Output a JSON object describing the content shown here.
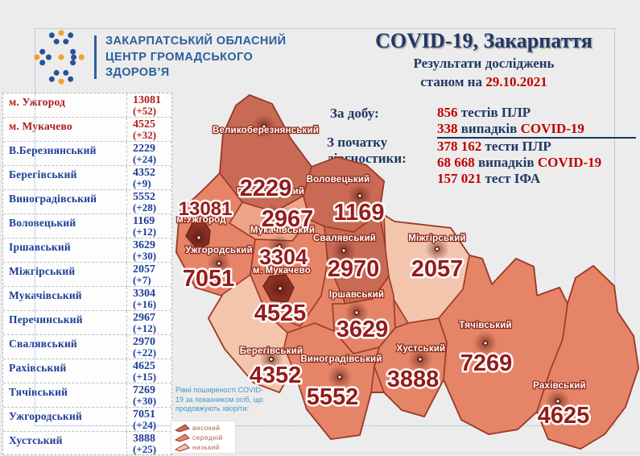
{
  "header": {
    "org_name_lines": [
      "ЗАКАРПАТСЬКИЙ ОБЛАСНИЙ",
      "ЦЕНТР ГРОМАДСЬКОГО",
      "ЗДОРОВ’Я"
    ],
    "logo_colors": {
      "blue": "#2b5196",
      "orange": "#f5a028"
    },
    "title": "COVID-19, Закарпаття",
    "subtitle": "Результати досліджень",
    "subtitle2_prefix": "станом на ",
    "date": "29.10.2021"
  },
  "stats": {
    "daily_label": "За добу:",
    "total_label_line1": "З початку",
    "total_label_line2": "діагностики:",
    "daily": [
      {
        "num": "856",
        "word": " тестів ",
        "unit": "ПЛР",
        "unit_red": false
      },
      {
        "num": "338",
        "word": " випадків ",
        "unit": "COVID-19",
        "unit_red": true
      }
    ],
    "total": [
      {
        "num": "378 162",
        "word": " тести ",
        "unit": "ПЛР",
        "unit_red": false
      },
      {
        "num": "68 668",
        "word": " випадків ",
        "unit": "COVID-19",
        "unit_red": true
      },
      {
        "num": "157 021",
        "word": " тест ",
        "unit": "ІФА",
        "unit_red": false
      }
    ]
  },
  "table": {
    "rows": [
      {
        "name": "м. Ужгород",
        "value": "13081",
        "delta": "(+52)",
        "red": true
      },
      {
        "name": "м. Мукачево",
        "value": "4525",
        "delta": "(+32)",
        "red": true
      },
      {
        "name": "В.Березнянський",
        "value": "2229",
        "delta": "(+24)",
        "red": false
      },
      {
        "name": "Берегівський",
        "value": "4352",
        "delta": "(+9)",
        "red": false
      },
      {
        "name": "Виноградівський",
        "value": "5552",
        "delta": "(+28)",
        "red": false
      },
      {
        "name": "Воловецький",
        "value": "1169",
        "delta": "(+12)",
        "red": false
      },
      {
        "name": "Іршавський",
        "value": "3629",
        "delta": "(+30)",
        "red": false
      },
      {
        "name": "Міжгірський",
        "value": "2057",
        "delta": "(+7)",
        "red": false
      },
      {
        "name": "Мукачівський",
        "value": "3304",
        "delta": "(+16)",
        "red": false
      },
      {
        "name": "Перечинський",
        "value": "2967",
        "delta": "(+12)",
        "red": false
      },
      {
        "name": "Свалявський",
        "value": "2970",
        "delta": "(+22)",
        "red": false
      },
      {
        "name": "Рахівський",
        "value": "4625",
        "delta": "(+15)",
        "red": false
      },
      {
        "name": "Тячівський",
        "value": "7269",
        "delta": "(+30)",
        "red": false
      },
      {
        "name": "Ужгородський",
        "value": "7051",
        "delta": "(+24)",
        "red": false
      },
      {
        "name": "Хустський",
        "value": "3888",
        "delta": "(+25)",
        "red": false
      }
    ]
  },
  "legend": {
    "title_lines": [
      "Рівні поширеності COVID-",
      "19 за показником осіб, що",
      "продовжують хворіти:"
    ],
    "items": [
      {
        "label": "високий",
        "level": "high"
      },
      {
        "label": "середній",
        "level": "mid"
      },
      {
        "label": "низький",
        "level": "low"
      }
    ]
  },
  "map": {
    "level_colors": {
      "high": "#c96a55",
      "mid": "#e58467",
      "mid_light": "#eea488",
      "low": "#f4c5ad",
      "city": "#8a3326",
      "border": "#9c3828",
      "number": "#951c1c",
      "label_stroke": "#8e2a1a"
    },
    "regions": [
      {
        "id": "velykobereznianskyi",
        "label": "Великоберезнянський",
        "cases": "2229",
        "level": "high"
      },
      {
        "id": "perechynskyi",
        "label": "Перечинський",
        "cases": "2967",
        "level": "mid_light"
      },
      {
        "id": "volovetskyi",
        "label": "Воловецький",
        "cases": "1169",
        "level": "high"
      },
      {
        "id": "uzhhorodskyi",
        "label": "Ужгородський",
        "cases": "7051",
        "level": "mid"
      },
      {
        "id": "mizhhirskyi",
        "label": "Міжгірський",
        "cases": "2057",
        "level": "low"
      },
      {
        "id": "mukachivskyi",
        "label": "Мукачівський",
        "cases": "3304",
        "level": "mid"
      },
      {
        "id": "svaliavskyi",
        "label": "Свалявський",
        "cases": "2970",
        "level": "high"
      },
      {
        "id": "irshavskyi",
        "label": "Іршавський",
        "cases": "3629",
        "level": "mid"
      },
      {
        "id": "berehivskyi",
        "label": "Берегівський",
        "cases": "4352",
        "level": "low"
      },
      {
        "id": "vynohradivskyi",
        "label": "Виноградівський",
        "cases": "5552",
        "level": "mid"
      },
      {
        "id": "khustskyi",
        "label": "Хустський",
        "cases": "3888",
        "level": "mid"
      },
      {
        "id": "tiachivskyi",
        "label": "Тячівський",
        "cases": "7269",
        "level": "mid"
      },
      {
        "id": "rakhivskyi",
        "label": "Рахівський",
        "cases": "4625",
        "level": "mid"
      }
    ],
    "cities": [
      {
        "id": "uzhhorod",
        "label": "м.Ужгород",
        "cases": "13081"
      },
      {
        "id": "mukachevo",
        "label": "м. Мукачево",
        "cases": "4525"
      }
    ]
  }
}
